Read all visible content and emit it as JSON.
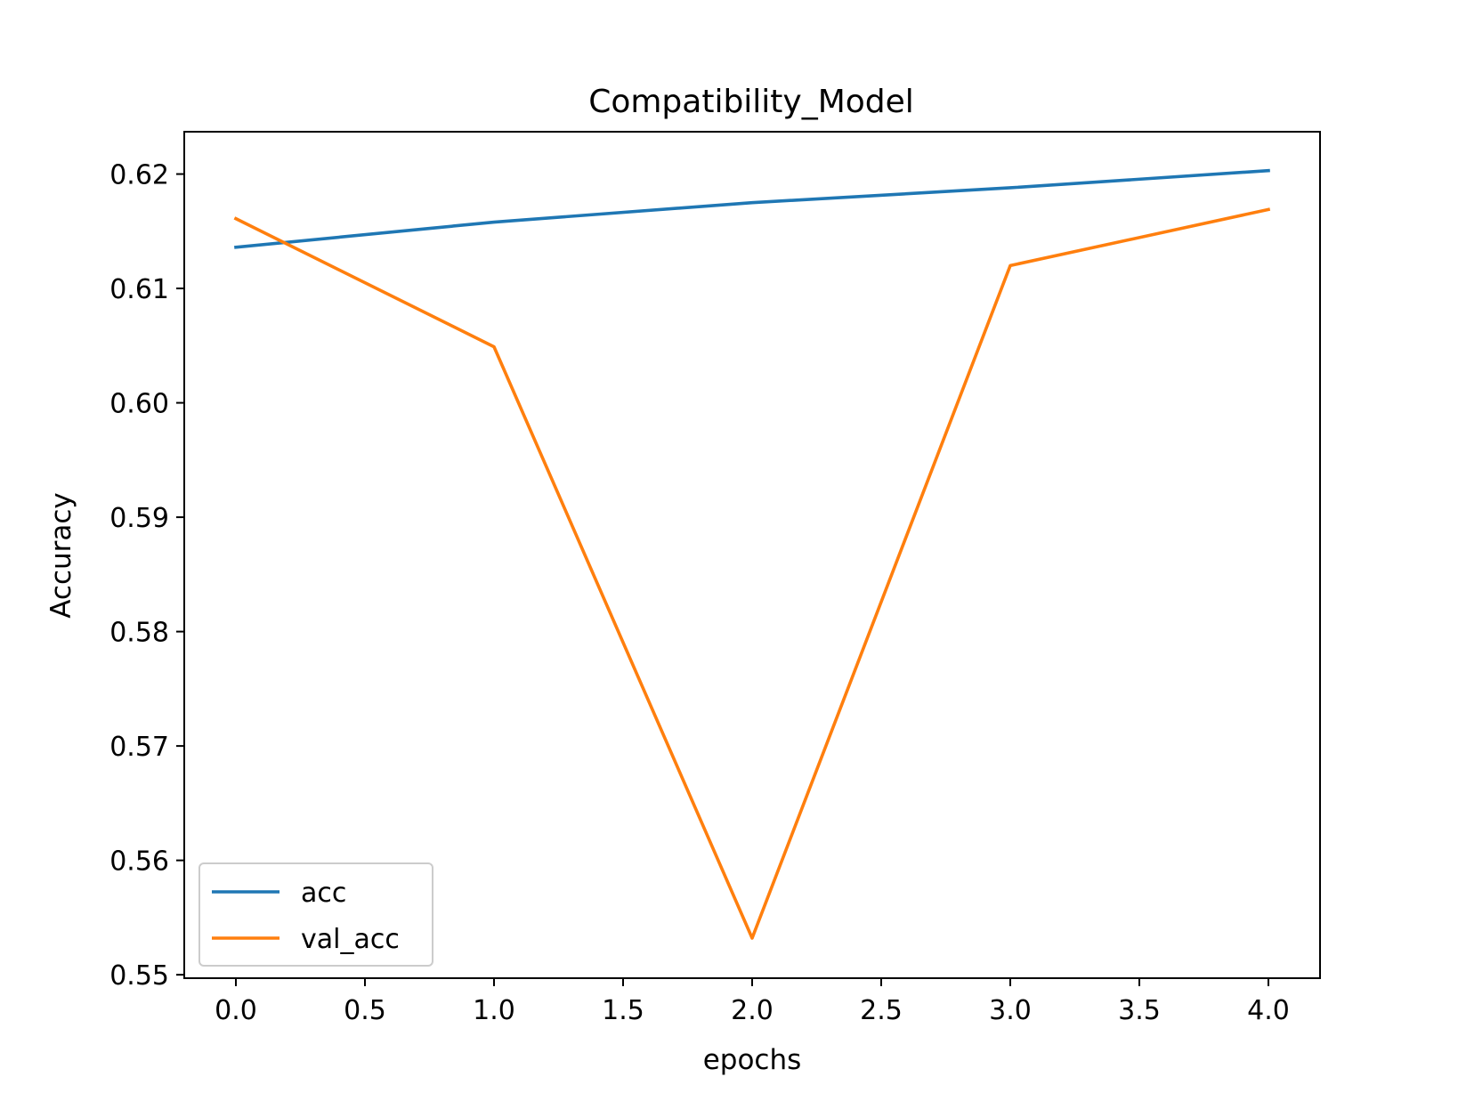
{
  "chart_data": {
    "type": "line",
    "title": "Compatibility_Model",
    "xlabel": "epochs",
    "ylabel": "Accuracy",
    "xlim": [
      -0.2,
      4.2
    ],
    "ylim": [
      0.5497,
      0.6237
    ],
    "x": [
      0,
      1,
      2,
      3,
      4
    ],
    "xticks": [
      0.0,
      0.5,
      1.0,
      1.5,
      2.0,
      2.5,
      3.0,
      3.5,
      4.0
    ],
    "xtick_labels": [
      "0.0",
      "0.5",
      "1.0",
      "1.5",
      "2.0",
      "2.5",
      "3.0",
      "3.5",
      "4.0"
    ],
    "yticks": [
      0.55,
      0.56,
      0.57,
      0.58,
      0.59,
      0.6,
      0.61,
      0.62
    ],
    "ytick_labels": [
      "0.55",
      "0.56",
      "0.57",
      "0.58",
      "0.59",
      "0.60",
      "0.61",
      "0.62"
    ],
    "grid": false,
    "legend_position": "lower-left",
    "series": [
      {
        "name": "acc",
        "color": "#1f77b4",
        "values": [
          0.6136,
          0.6158,
          0.6175,
          0.6188,
          0.6203
        ]
      },
      {
        "name": "val_acc",
        "color": "#ff7f0e",
        "values": [
          0.6161,
          0.6049,
          0.5532,
          0.612,
          0.6169
        ]
      }
    ]
  }
}
